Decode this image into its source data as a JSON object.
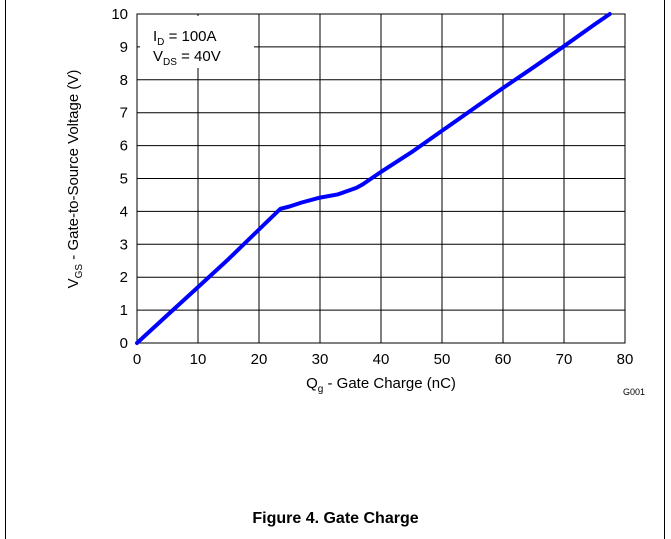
{
  "chart_data": {
    "type": "line",
    "xlabel": "Q",
    "xlabel_sub": "g",
    "xlabel_rest": " - Gate Charge  (nC)",
    "ylabel": "V",
    "ylabel_sub": "GS",
    "ylabel_rest": " - Gate-to-Source Voltage (V)",
    "xlim": [
      0,
      80
    ],
    "ylim": [
      0,
      10
    ],
    "x_ticks": [
      0,
      10,
      20,
      30,
      40,
      50,
      60,
      70,
      80
    ],
    "y_ticks": [
      0,
      1,
      2,
      3,
      4,
      5,
      6,
      7,
      8,
      9,
      10
    ],
    "grid": true,
    "series": [
      {
        "color": "#0000ff",
        "x": [
          0,
          5,
          10,
          15,
          20,
          23.5,
          25,
          27,
          30,
          33,
          36,
          37,
          40,
          45,
          50,
          55,
          60,
          65,
          70,
          75,
          77.5
        ],
        "y": [
          0,
          0.85,
          1.7,
          2.55,
          3.45,
          4.08,
          4.15,
          4.27,
          4.42,
          4.52,
          4.72,
          4.82,
          5.2,
          5.8,
          6.45,
          7.1,
          7.75,
          8.38,
          9.02,
          9.68,
          10
        ]
      }
    ],
    "annotation": {
      "line1_main": "I",
      "line1_sub": "D",
      "line1_rest": " = 100A",
      "line2_main": "V",
      "line2_sub": "DS",
      "line2_rest": " = 40V"
    },
    "code": "G001"
  },
  "caption": "Figure 4. Gate Charge"
}
